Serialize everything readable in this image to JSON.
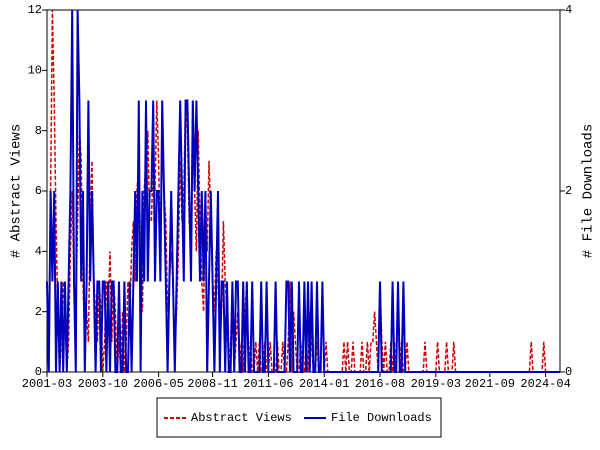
{
  "chart_data": {
    "type": "line",
    "y_label": "# Abstract Views",
    "y2_label": "# File Downloads",
    "x": [
      "2001-03",
      "2001-04",
      "2001-05",
      "2001-06",
      "2001-07",
      "2001-08",
      "2001-09",
      "2001-10",
      "2001-11",
      "2001-12",
      "2002-01",
      "2002-02",
      "2002-03",
      "2002-04",
      "2002-05",
      "2002-06",
      "2002-07",
      "2002-08",
      "2002-09",
      "2002-10",
      "2002-11",
      "2002-12",
      "2003-01",
      "2003-02",
      "2003-03",
      "2003-04",
      "2003-05",
      "2003-06",
      "2003-07",
      "2003-08",
      "2003-09",
      "2003-10",
      "2003-11",
      "2003-12",
      "2004-01",
      "2004-02",
      "2004-03",
      "2004-04",
      "2004-05",
      "2004-06",
      "2004-07",
      "2004-08",
      "2004-09",
      "2004-10",
      "2004-11",
      "2004-12",
      "2005-01",
      "2005-02",
      "2005-03",
      "2005-04",
      "2005-05",
      "2005-06",
      "2005-07",
      "2005-08",
      "2005-09",
      "2005-10",
      "2005-11",
      "2005-12",
      "2006-01",
      "2006-02",
      "2006-03",
      "2006-04",
      "2006-05",
      "2006-06",
      "2006-07",
      "2006-08",
      "2006-09",
      "2006-10",
      "2006-11",
      "2006-12",
      "2007-01",
      "2007-02",
      "2007-03",
      "2007-04",
      "2007-05",
      "2007-06",
      "2007-07",
      "2007-08",
      "2007-09",
      "2007-10",
      "2007-11",
      "2007-12",
      "2008-01",
      "2008-02",
      "2008-03",
      "2008-04",
      "2008-05",
      "2008-06",
      "2008-07",
      "2008-08",
      "2008-09",
      "2008-10",
      "2008-11",
      "2008-12",
      "2009-01",
      "2009-02",
      "2009-03",
      "2009-04",
      "2009-05",
      "2009-06",
      "2009-07",
      "2009-08",
      "2009-09",
      "2009-10",
      "2009-11",
      "2009-12",
      "2010-01",
      "2010-02",
      "2010-03",
      "2010-04",
      "2010-05",
      "2010-06",
      "2010-07",
      "2010-08",
      "2010-09",
      "2010-10",
      "2010-11",
      "2010-12",
      "2011-01",
      "2011-02",
      "2011-03",
      "2011-04",
      "2011-05",
      "2011-06",
      "2011-07",
      "2011-08",
      "2011-09",
      "2011-10",
      "2011-11",
      "2011-12",
      "2012-01",
      "2012-02",
      "2012-03",
      "2012-04",
      "2012-05",
      "2012-06",
      "2012-07",
      "2012-08",
      "2012-09",
      "2012-10",
      "2012-11",
      "2012-12",
      "2013-01",
      "2013-02",
      "2013-03",
      "2013-04",
      "2013-05",
      "2013-06",
      "2013-07",
      "2013-08",
      "2013-09",
      "2013-10",
      "2013-11",
      "2013-12",
      "2014-01",
      "2014-02",
      "2014-03",
      "2014-04",
      "2014-05",
      "2014-06",
      "2014-07",
      "2014-08",
      "2014-09",
      "2014-10",
      "2014-11",
      "2014-12",
      "2015-01",
      "2015-02",
      "2015-03",
      "2015-04",
      "2015-05",
      "2015-06",
      "2015-07",
      "2015-08",
      "2015-09",
      "2015-10",
      "2015-11",
      "2015-12",
      "2016-01",
      "2016-02",
      "2016-03",
      "2016-04",
      "2016-05",
      "2016-06",
      "2016-07",
      "2016-08",
      "2016-09",
      "2016-10",
      "2016-11",
      "2016-12",
      "2017-01",
      "2017-02",
      "2017-03",
      "2017-04",
      "2017-05",
      "2017-06",
      "2017-07",
      "2017-08",
      "2017-09",
      "2017-10",
      "2017-11",
      "2017-12",
      "2018-01",
      "2018-02",
      "2018-03",
      "2018-04",
      "2018-05",
      "2018-06",
      "2018-07",
      "2018-08",
      "2018-09",
      "2018-10",
      "2018-11",
      "2018-12",
      "2019-01",
      "2019-02",
      "2019-03",
      "2019-04",
      "2019-05",
      "2019-06",
      "2019-07",
      "2019-08",
      "2019-09",
      "2019-10",
      "2019-11",
      "2019-12",
      "2020-01",
      "2020-02",
      "2020-03",
      "2020-04",
      "2020-05",
      "2020-06",
      "2020-07",
      "2020-08",
      "2020-09",
      "2020-10",
      "2020-11",
      "2020-12",
      "2021-01",
      "2021-02",
      "2021-03",
      "2021-04",
      "2021-05",
      "2021-06",
      "2021-07",
      "2021-08",
      "2021-09",
      "2021-10",
      "2021-11",
      "2021-12",
      "2022-01",
      "2022-02",
      "2022-03",
      "2022-04",
      "2022-05",
      "2022-06",
      "2022-07",
      "2022-08",
      "2022-09",
      "2022-10",
      "2022-11",
      "2022-12",
      "2023-01",
      "2023-02",
      "2023-03",
      "2023-04",
      "2023-05",
      "2023-06",
      "2023-07",
      "2023-08",
      "2023-09",
      "2023-10",
      "2023-11",
      "2023-12",
      "2024-01",
      "2024-02",
      "2024-03",
      "2024-04",
      "2024-05",
      "2024-06",
      "2024-07",
      "2024-08",
      "2024-09",
      "2024-10",
      "2024-11",
      "2024-12"
    ],
    "xticks": [
      "2001-03",
      "2003-10",
      "2006-05",
      "2008-11",
      "2011-06",
      "2014-01",
      "2016-08",
      "2019-03",
      "2021-09",
      "2024-04"
    ],
    "ylim": [
      0,
      12
    ],
    "yticks": [
      0,
      2,
      4,
      6,
      8,
      10,
      12
    ],
    "y2lim": [
      0,
      4
    ],
    "y2ticks": [
      0,
      2,
      4
    ],
    "legend": "bottom",
    "series": [
      {
        "name": "Abstract Views",
        "color": "#cc0000",
        "dash": true,
        "values": [
          3,
          1,
          6,
          12,
          9,
          5,
          2,
          0,
          1,
          3,
          2,
          0,
          1,
          4,
          6,
          3,
          2,
          5,
          8,
          7,
          3,
          1,
          2,
          1,
          5,
          7,
          3,
          2,
          1,
          3,
          2,
          0,
          1,
          3,
          2,
          4,
          1,
          3,
          2,
          0,
          1,
          0,
          2,
          0,
          1,
          3,
          2,
          4,
          5,
          3,
          6,
          7,
          4,
          2,
          6,
          7,
          8,
          5,
          5,
          7,
          6,
          9,
          7,
          4,
          8,
          6,
          5,
          2,
          3,
          4,
          3,
          1,
          2,
          4,
          7,
          5,
          6,
          9,
          8,
          5,
          4,
          9,
          6,
          4,
          8,
          5,
          3,
          2,
          6,
          4,
          7,
          5,
          3,
          2,
          4,
          3,
          1,
          2,
          5,
          3,
          2,
          0,
          1,
          3,
          0,
          1,
          2,
          0,
          1,
          0,
          2,
          3,
          0,
          1,
          0,
          0,
          1,
          0,
          1,
          0,
          0,
          1,
          0,
          0,
          1,
          0,
          0,
          0,
          1,
          0,
          0,
          1,
          0,
          0,
          1,
          3,
          0,
          2,
          1,
          0,
          0,
          1,
          0,
          0,
          1,
          0,
          2,
          1,
          0,
          0,
          1,
          0,
          0,
          0,
          0,
          1,
          0,
          0,
          0,
          0,
          0,
          0,
          0,
          0,
          0,
          1,
          0,
          1,
          0,
          0,
          1,
          0,
          0,
          0,
          0,
          1,
          0,
          0,
          1,
          0,
          1,
          1,
          2,
          1,
          0,
          3,
          1,
          0,
          1,
          0,
          0,
          1,
          0,
          1,
          0,
          0,
          0,
          1,
          0,
          0,
          1,
          0,
          0,
          0,
          0,
          0,
          0,
          0,
          0,
          0,
          1,
          0,
          0,
          0,
          0,
          0,
          0,
          1,
          0,
          0,
          0,
          0,
          1,
          0,
          0,
          0,
          1,
          0,
          0,
          0,
          0,
          0,
          0,
          0,
          0,
          0,
          0,
          0,
          0,
          0,
          0,
          0,
          0,
          0,
          0,
          0,
          0,
          0,
          0,
          0,
          0,
          0,
          0,
          0,
          0,
          0,
          0,
          0,
          0,
          0,
          0,
          0,
          0,
          0,
          0,
          0,
          0,
          0,
          0,
          1,
          0,
          0,
          0,
          0,
          0,
          0,
          1,
          0,
          0,
          0,
          0,
          0,
          0,
          0,
          0,
          0
        ]
      },
      {
        "name": "File Downloads",
        "color": "#0000bb",
        "axis": "y2",
        "values": [
          1,
          0,
          2,
          1,
          2,
          0,
          1,
          0,
          1,
          0,
          1,
          0,
          1,
          2,
          4,
          1,
          0,
          4,
          3,
          1,
          2,
          0,
          1,
          3,
          1,
          2,
          1,
          0,
          1,
          1,
          0,
          1,
          1,
          0,
          1,
          0,
          1,
          1,
          0,
          0,
          1,
          0,
          0,
          1,
          0,
          0,
          1,
          0,
          1,
          2,
          1,
          3,
          0,
          2,
          1,
          3,
          1,
          2,
          2,
          3,
          1,
          2,
          2,
          1,
          3,
          2,
          1,
          0,
          1,
          2,
          1,
          0,
          1,
          2,
          3,
          2,
          1,
          3,
          3,
          2,
          1,
          3,
          2,
          3,
          2,
          1,
          2,
          1,
          2,
          0,
          1,
          2,
          1,
          0,
          1,
          2,
          0,
          1,
          1,
          0,
          1,
          0,
          0,
          1,
          0,
          1,
          1,
          0,
          0,
          1,
          0,
          1,
          0,
          0,
          1,
          0,
          0,
          0,
          0,
          1,
          0,
          0,
          1,
          0,
          0,
          0,
          0,
          1,
          0,
          0,
          0,
          0,
          0,
          1,
          1,
          0,
          1,
          0,
          0,
          0,
          1,
          0,
          0,
          1,
          0,
          1,
          0,
          1,
          0,
          0,
          1,
          0,
          0,
          1,
          0,
          0,
          0,
          0,
          0,
          0,
          0,
          0,
          0,
          0,
          0,
          0,
          0,
          0,
          0,
          0,
          0,
          0,
          0,
          0,
          0,
          0,
          0,
          0,
          0,
          0,
          0,
          0,
          0,
          0,
          0,
          1,
          0,
          0,
          0,
          0,
          0,
          0,
          1,
          0,
          0,
          1,
          0,
          0,
          1,
          0,
          0,
          0,
          0,
          0,
          0,
          0,
          0,
          0,
          0,
          0,
          0,
          0,
          0,
          0,
          0,
          0,
          0,
          0,
          0,
          0,
          0,
          0,
          0,
          0,
          0,
          0,
          0,
          0,
          0,
          0,
          0,
          0,
          0,
          0,
          0,
          0,
          0,
          0,
          0,
          0,
          0,
          0,
          0,
          0,
          0,
          0,
          0,
          0,
          0,
          0,
          0,
          0,
          0,
          0,
          0,
          0,
          0,
          0,
          0,
          0,
          0,
          0,
          0,
          0,
          0,
          0,
          0,
          0,
          0,
          0,
          0,
          0,
          0,
          0,
          0,
          0,
          0,
          0,
          0,
          0,
          0,
          0,
          0,
          0,
          0,
          0
        ]
      }
    ]
  }
}
